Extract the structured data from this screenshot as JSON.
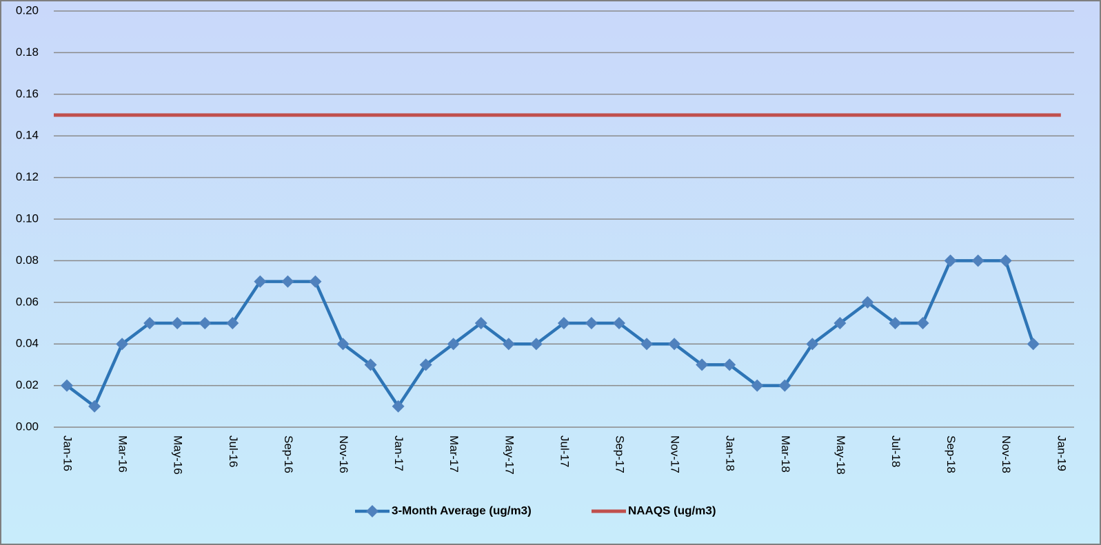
{
  "chart_data": {
    "type": "line",
    "categories": [
      "Jan-16",
      null,
      "Mar-16",
      null,
      "May-16",
      null,
      "Jul-16",
      null,
      "Sep-16",
      null,
      "Nov-16",
      null,
      "Jan-17",
      null,
      "Mar-17",
      null,
      "May-17",
      null,
      "Jul-17",
      null,
      "Sep-17",
      null,
      "Nov-17",
      null,
      "Jan-18",
      null,
      "Mar-18",
      null,
      "May-18",
      null,
      "Jul-18",
      null,
      "Sep-18",
      null,
      "Nov-18",
      null,
      "Jan-19"
    ],
    "series": [
      {
        "name": "3-Month Average (ug/m3)",
        "color": "#2e75b6",
        "marker_color": "#4f81bd",
        "values": [
          0.02,
          0.01,
          0.04,
          0.05,
          0.05,
          0.05,
          0.05,
          0.07,
          0.07,
          0.07,
          0.04,
          0.03,
          0.01,
          0.03,
          0.04,
          0.05,
          0.04,
          0.04,
          0.05,
          0.05,
          0.05,
          0.04,
          0.04,
          0.03,
          0.03,
          0.02,
          0.02,
          0.04,
          0.05,
          0.06,
          0.05,
          0.05,
          0.08,
          0.08,
          0.08,
          0.04,
          null
        ]
      },
      {
        "name": "NAAQS (ug/m3)",
        "color": "#c0504d",
        "values": [
          0.15,
          0.15,
          0.15,
          0.15,
          0.15,
          0.15,
          0.15,
          0.15,
          0.15,
          0.15,
          0.15,
          0.15,
          0.15,
          0.15,
          0.15,
          0.15,
          0.15,
          0.15,
          0.15,
          0.15,
          0.15,
          0.15,
          0.15,
          0.15,
          0.15,
          0.15,
          0.15,
          0.15,
          0.15,
          0.15,
          0.15,
          0.15,
          0.15,
          0.15,
          0.15,
          0.15,
          0.15
        ]
      }
    ],
    "ylim": [
      0,
      0.2
    ],
    "yticks": [
      {
        "value": 0,
        "label": "0.00"
      },
      {
        "value": 0.02,
        "label": "0.02"
      },
      {
        "value": 0.04,
        "label": "0.04"
      },
      {
        "value": 0.06,
        "label": "0.06"
      },
      {
        "value": 0.08,
        "label": "0.08"
      },
      {
        "value": 0.1,
        "label": "0.10"
      },
      {
        "value": 0.12,
        "label": "0.12"
      },
      {
        "value": 0.14,
        "label": "0.14"
      },
      {
        "value": 0.16,
        "label": "0.16"
      },
      {
        "value": 0.18,
        "label": "0.18"
      },
      {
        "value": 0.2,
        "label": "0.20"
      }
    ],
    "grid": true,
    "legend": "bottom"
  }
}
